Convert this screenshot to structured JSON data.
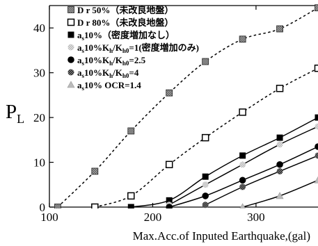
{
  "chart_data": {
    "type": "line",
    "xlabel": "Max.Acc.of Inputed Earthquake,(gal)",
    "ylabel": "PL",
    "ylabel_main": "P",
    "ylabel_sub": "L",
    "xlim": [
      100,
      360
    ],
    "ylim": [
      0,
      45
    ],
    "xticks": [
      100,
      200,
      300
    ],
    "yticks": [
      0,
      10,
      20,
      30,
      40
    ],
    "grid": false,
    "legend_position": "top-left",
    "series": [
      {
        "name": "D r 50%（未改良地盤）",
        "line": "dashed",
        "marker": "checkered-square",
        "color": "#000000",
        "x": [
          108,
          144,
          179,
          216,
          251,
          287,
          323,
          360
        ],
        "y": [
          0,
          8,
          17,
          25.5,
          32.5,
          37.5,
          39.8,
          44.5
        ]
      },
      {
        "name": "D r 80%（未改良地盤）",
        "line": "dashed",
        "marker": "open-square",
        "color": "#000000",
        "x": [
          144,
          179,
          216,
          251,
          287,
          323,
          360
        ],
        "y": [
          0,
          2.5,
          9.5,
          15.5,
          21.2,
          26.5,
          31
        ]
      },
      {
        "name_main": "a",
        "name_sub": "s",
        "name_rest": "10%（密度増加なし）",
        "line": "solid",
        "marker": "filled-square",
        "color": "#000000",
        "x": [
          179,
          216,
          251,
          287,
          323,
          360
        ],
        "y": [
          0,
          1.5,
          6.8,
          11.5,
          15.5,
          20
        ]
      },
      {
        "name_main": "a",
        "name_sub": "s",
        "name_rest": "10%K",
        "name_sub2": "h",
        "name_rest2": "/K",
        "name_sub3": "h0",
        "name_rest3": "=1(密度増加のみ)",
        "line": "solid",
        "marker": "light-checkered-circle",
        "color": "#8c8c8c",
        "x": [
          216,
          251,
          287,
          323,
          360
        ],
        "y": [
          0.5,
          5,
          9.5,
          14,
          18
        ]
      },
      {
        "name_main": "a",
        "name_sub": "s",
        "name_rest": "10%K",
        "name_sub2": "h",
        "name_rest2": "/K",
        "name_sub3": "h0",
        "name_rest3": "=2.5",
        "line": "solid",
        "marker": "filled-circle",
        "color": "#000000",
        "x": [
          216,
          251,
          287,
          323,
          360
        ],
        "y": [
          0,
          2.5,
          6,
          9.5,
          13.5
        ]
      },
      {
        "name_main": "a",
        "name_sub": "s",
        "name_rest": "10%K",
        "name_sub2": "h",
        "name_rest2": "/K",
        "name_sub3": "h0",
        "name_rest3": "=4",
        "line": "solid",
        "marker": "dark-checkered-circle",
        "color": "#555555",
        "x": [
          251,
          287,
          323,
          360
        ],
        "y": [
          0.5,
          4.5,
          8,
          11.5
        ]
      },
      {
        "name_main": "a",
        "name_sub": "s",
        "name_rest": "10% OCR=1.4",
        "line": "solid",
        "marker": "triangle",
        "color": "#9a9a9a",
        "x": [
          287,
          323,
          360
        ],
        "y": [
          0,
          2.5,
          6
        ]
      }
    ]
  }
}
